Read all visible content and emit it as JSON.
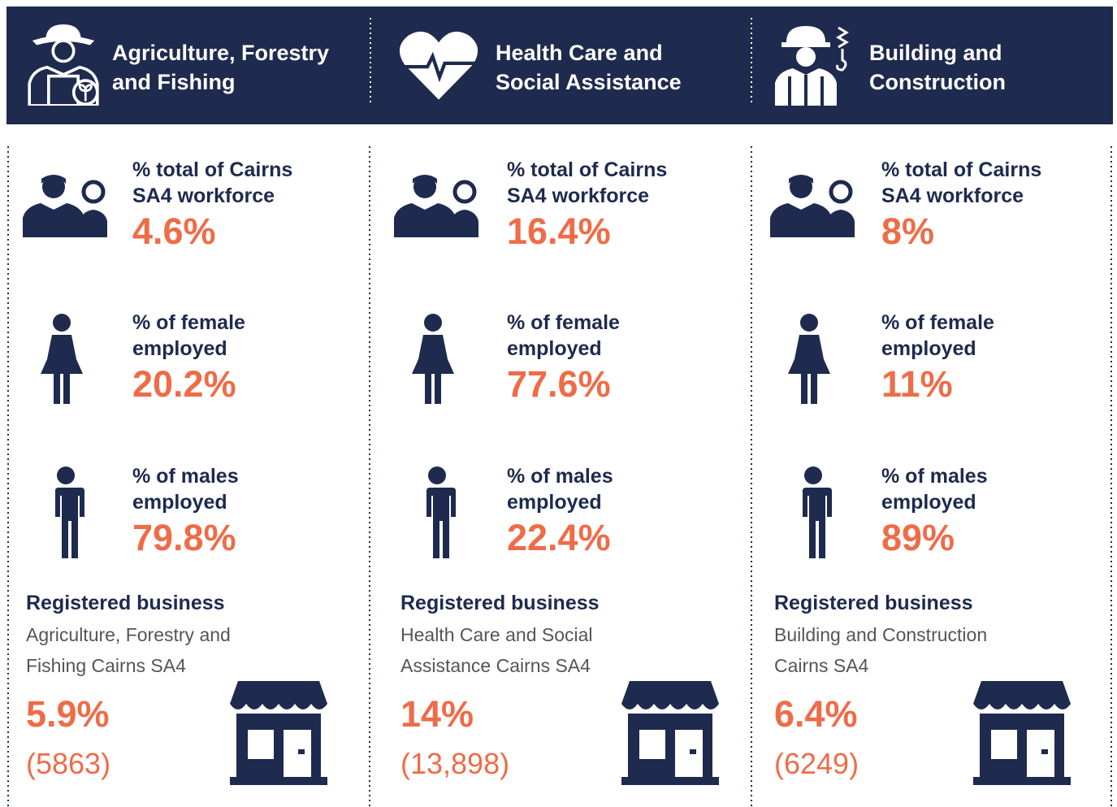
{
  "columns": [
    {
      "title": [
        "Agriculture, Forestry",
        "and Fishing"
      ],
      "stats": [
        {
          "label": [
            "% total of Cairns",
            "SA4 workforce"
          ],
          "value": "4.6%"
        },
        {
          "label": [
            "% of female",
            "employed"
          ],
          "value": "20.2%"
        },
        {
          "label": [
            "% of males",
            "employed"
          ],
          "value": "79.8%"
        }
      ],
      "business": {
        "heading": "Registered business",
        "description": [
          "Agriculture, Forestry and",
          "Fishing Cairns SA4"
        ],
        "percent": "5.9%",
        "count": "(5863)"
      }
    },
    {
      "title": [
        "Health Care and",
        "Social Assistance"
      ],
      "stats": [
        {
          "label": [
            "% total of Cairns",
            "SA4 workforce"
          ],
          "value": "16.4%"
        },
        {
          "label": [
            "% of female",
            "employed"
          ],
          "value": "77.6%"
        },
        {
          "label": [
            "% of males",
            "employed"
          ],
          "value": "22.4%"
        }
      ],
      "business": {
        "heading": "Registered business",
        "description": [
          "Health Care and Social",
          "Assistance Cairns SA4"
        ],
        "percent": "14%",
        "count": "(13,898)"
      }
    },
    {
      "title": [
        "Building and",
        "Construction"
      ],
      "stats": [
        {
          "label": [
            "% total of Cairns",
            "SA4 workforce"
          ],
          "value": "8%"
        },
        {
          "label": [
            "% of female",
            "employed"
          ],
          "value": "11%"
        },
        {
          "label": [
            "% of males",
            "employed"
          ],
          "value": "89%"
        }
      ],
      "business": {
        "heading": "Registered business",
        "description": [
          "Building and Construction",
          "Cairns SA4"
        ],
        "percent": "6.4%",
        "count": "(6249)"
      }
    }
  ]
}
